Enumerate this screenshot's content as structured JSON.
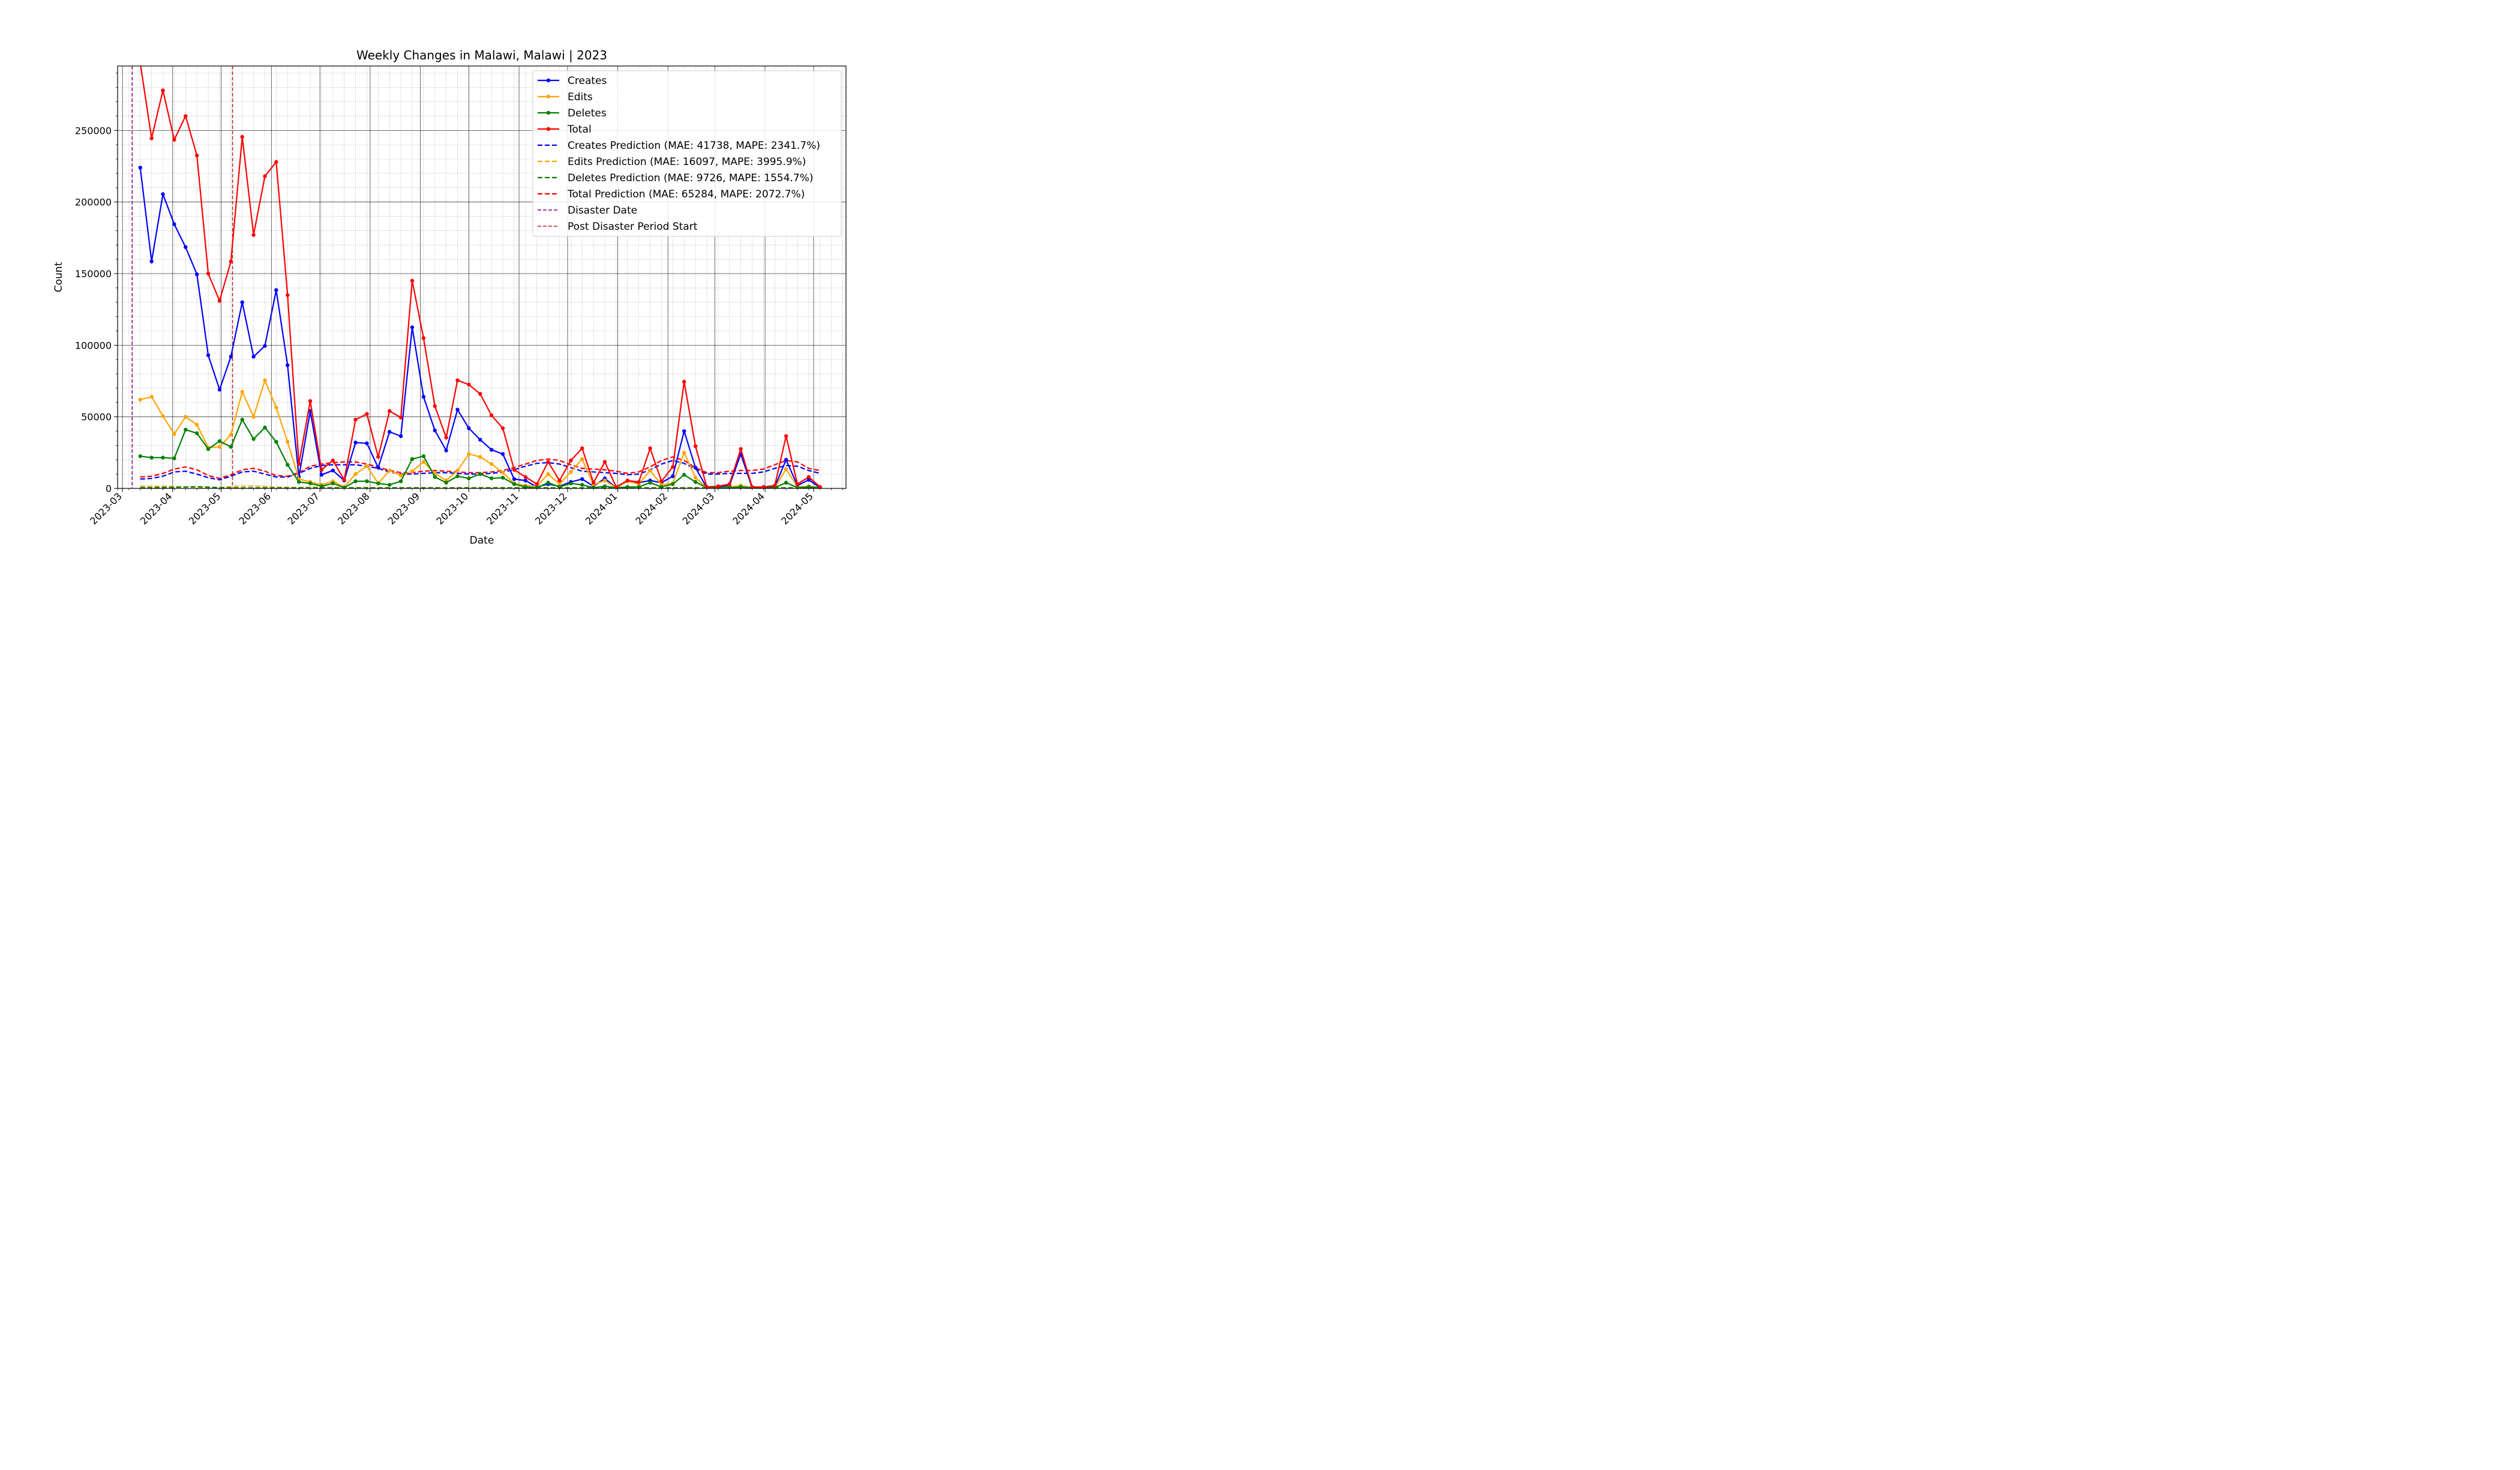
{
  "chart_data": {
    "type": "line",
    "title": "Weekly Changes in Malawi, Malawi | 2023",
    "xlabel": "Date",
    "ylabel": "Count",
    "x_axis": {
      "type": "date",
      "min": "2023-02-26",
      "max": "2024-05-21"
    },
    "ylim": [
      0,
      295000
    ],
    "grid": {
      "major": true,
      "minor": true
    },
    "legend_position": "top-right",
    "x_tick_labels": [
      "2023-03",
      "2023-04",
      "2023-05",
      "2023-06",
      "2023-07",
      "2023-08",
      "2023-09",
      "2023-10",
      "2023-11",
      "2023-12",
      "2024-01",
      "2024-02",
      "2024-03",
      "2024-04",
      "2024-05"
    ],
    "y_tick_labels": [
      "0",
      "50000",
      "100000",
      "150000",
      "200000",
      "250000"
    ],
    "x": [
      "2023-03-12",
      "2023-03-19",
      "2023-03-26",
      "2023-04-02",
      "2023-04-09",
      "2023-04-16",
      "2023-04-23",
      "2023-04-30",
      "2023-05-07",
      "2023-05-14",
      "2023-05-21",
      "2023-05-28",
      "2023-06-04",
      "2023-06-11",
      "2023-06-18",
      "2023-06-25",
      "2023-07-02",
      "2023-07-09",
      "2023-07-16",
      "2023-07-23",
      "2023-07-30",
      "2023-08-06",
      "2023-08-13",
      "2023-08-20",
      "2023-08-27",
      "2023-09-03",
      "2023-09-10",
      "2023-09-17",
      "2023-09-24",
      "2023-10-01",
      "2023-10-08",
      "2023-10-15",
      "2023-10-22",
      "2023-10-29",
      "2023-11-05",
      "2023-11-12",
      "2023-11-19",
      "2023-11-26",
      "2023-12-03",
      "2023-12-10",
      "2023-12-17",
      "2023-12-24",
      "2023-12-31",
      "2024-01-07",
      "2024-01-14",
      "2024-01-21",
      "2024-01-28",
      "2024-02-04",
      "2024-02-11",
      "2024-02-18",
      "2024-02-25",
      "2024-03-03",
      "2024-03-10",
      "2024-03-17",
      "2024-03-24",
      "2024-03-31",
      "2024-04-07",
      "2024-04-14",
      "2024-04-21",
      "2024-04-28",
      "2024-05-05"
    ],
    "series": [
      {
        "name": "Creates",
        "color": "#0000ff",
        "style": "solid-marker",
        "values": [
          224000,
          158500,
          205500,
          184500,
          168500,
          149500,
          93000,
          69000,
          92000,
          130000,
          92000,
          99500,
          138500,
          86000,
          8000,
          54000,
          9500,
          12500,
          5500,
          32000,
          31500,
          14500,
          39500,
          36500,
          112500,
          64000,
          40500,
          26500,
          55000,
          42000,
          34000,
          27000,
          24000,
          6500,
          5500,
          1000,
          3000,
          1500,
          4500,
          6500,
          1500,
          7000,
          500,
          5000,
          4000,
          5500,
          4000,
          8500,
          40000,
          14500,
          500,
          1000,
          2000,
          24000,
          500,
          500,
          1000,
          20000,
          2000,
          6000,
          500
        ]
      },
      {
        "name": "Edits",
        "color": "#ffa500",
        "style": "solid-marker",
        "values": [
          62000,
          64000,
          50500,
          38000,
          50000,
          44500,
          28500,
          29000,
          37500,
          67500,
          50000,
          75500,
          56500,
          32500,
          6500,
          4500,
          2500,
          5000,
          1000,
          10000,
          15500,
          3500,
          12500,
          9000,
          12000,
          18500,
          10500,
          5500,
          12500,
          24000,
          22000,
          17000,
          11000,
          3500,
          2000,
          1500,
          10000,
          3000,
          11500,
          20500,
          2500,
          5500,
          500,
          5000,
          3000,
          12500,
          2500,
          3500,
          25000,
          7500,
          500,
          500,
          1000,
          2000,
          500,
          500,
          500,
          13500,
          1000,
          1500,
          500
        ]
      },
      {
        "name": "Deletes",
        "color": "#008000",
        "style": "solid-marker",
        "values": [
          22500,
          21500,
          21500,
          21000,
          41000,
          38500,
          27500,
          33000,
          29000,
          48000,
          34500,
          42500,
          32500,
          16500,
          4500,
          3500,
          1500,
          3500,
          500,
          5000,
          5000,
          3500,
          2500,
          5000,
          20500,
          22500,
          8000,
          4000,
          8500,
          7000,
          10000,
          7000,
          7500,
          3000,
          1000,
          500,
          4000,
          1000,
          3500,
          2500,
          500,
          1500,
          500,
          1000,
          1000,
          4000,
          1000,
          3000,
          9500,
          4500,
          500,
          500,
          500,
          1000,
          500,
          500,
          500,
          4000,
          500,
          1000,
          500
        ]
      },
      {
        "name": "Total",
        "color": "#ff0000",
        "style": "solid-marker",
        "values": [
          297000,
          244500,
          278000,
          243500,
          260000,
          232500,
          150000,
          131000,
          158500,
          245500,
          177000,
          218000,
          228000,
          135000,
          17000,
          61000,
          13000,
          19500,
          6000,
          48000,
          52000,
          22000,
          54000,
          49500,
          145000,
          105000,
          57500,
          35500,
          75500,
          72500,
          66000,
          51000,
          42000,
          13000,
          8000,
          3000,
          18500,
          5500,
          19500,
          28000,
          4000,
          18500,
          1000,
          5500,
          4500,
          28000,
          5000,
          15000,
          74500,
          29500,
          1000,
          1500,
          3000,
          27500,
          1000,
          1000,
          2000,
          36500,
          3000,
          8000,
          1000
        ]
      },
      {
        "name": "Creates Prediction (MAE: 41738, MAPE: 2341.7%)",
        "color": "#0000ff",
        "style": "dashed",
        "values": [
          6500,
          7000,
          8500,
          11500,
          12000,
          10000,
          7500,
          6000,
          8500,
          11500,
          12000,
          10000,
          8000,
          8000,
          10500,
          14000,
          16000,
          16500,
          16500,
          16500,
          15500,
          14000,
          11500,
          10000,
          10000,
          10500,
          11000,
          11000,
          10500,
          10000,
          10000,
          10500,
          11500,
          13000,
          15500,
          17500,
          18000,
          17000,
          14500,
          12000,
          11500,
          11000,
          10500,
          9500,
          10000,
          13000,
          17000,
          19500,
          17500,
          13500,
          10000,
          10000,
          10500,
          10500,
          10500,
          11500,
          14000,
          16000,
          15500,
          12500,
          10500
        ]
      },
      {
        "name": "Edits Prediction (MAE: 16097, MAPE: 3995.9%)",
        "color": "#ffa500",
        "style": "dashed",
        "values": [
          1500,
          1500,
          1500,
          1300,
          1000,
          800,
          500,
          700,
          1200,
          1600,
          1700,
          1400,
          900,
          700,
          700,
          800,
          800,
          600,
          500,
          500,
          600,
          500,
          500,
          500,
          500,
          500,
          500,
          500,
          500,
          500,
          500,
          500,
          500,
          500,
          500,
          500,
          500,
          500,
          500,
          500,
          500,
          500,
          500,
          500,
          500,
          500,
          500,
          500,
          500,
          500,
          500,
          500,
          500,
          500,
          500,
          500,
          500,
          500,
          500,
          500,
          500
        ]
      },
      {
        "name": "Deletes Prediction (MAE: 9726, MAPE: 1554.7%)",
        "color": "#008000",
        "style": "dashed",
        "values": [
          500,
          500,
          600,
          800,
          1000,
          1200,
          900,
          500,
          300,
          300,
          300,
          300,
          300,
          300,
          300,
          300,
          300,
          300,
          300,
          300,
          300,
          300,
          300,
          300,
          300,
          300,
          300,
          300,
          300,
          300,
          300,
          300,
          300,
          300,
          300,
          300,
          300,
          300,
          300,
          300,
          300,
          300,
          300,
          300,
          300,
          300,
          300,
          300,
          300,
          300,
          300,
          300,
          300,
          300,
          300,
          300,
          300,
          300,
          300,
          300,
          300
        ]
      },
      {
        "name": "Total Prediction (MAE: 65284, MAPE: 2072.7%)",
        "color": "#ff0000",
        "style": "dashed",
        "values": [
          8000,
          8500,
          10500,
          13500,
          15000,
          13000,
          9000,
          7000,
          9500,
          13000,
          14000,
          12000,
          9000,
          8500,
          11000,
          15500,
          17000,
          18000,
          18500,
          18500,
          17000,
          15000,
          12500,
          11000,
          11000,
          12000,
          12500,
          12000,
          11500,
          11000,
          11000,
          11500,
          12500,
          14500,
          17000,
          19500,
          20500,
          19500,
          16500,
          14000,
          13500,
          13000,
          12000,
          10500,
          11500,
          15000,
          19500,
          22000,
          19500,
          14500,
          11000,
          11000,
          12000,
          12500,
          12500,
          13500,
          16500,
          19500,
          18500,
          14000,
          12500
        ]
      }
    ],
    "markers": [
      {
        "name": "Disaster Date",
        "date": "2023-03-07",
        "color": "#800080"
      },
      {
        "name": "Post Disaster Period Start",
        "date": "2023-05-08",
        "color": "#b22222"
      }
    ]
  }
}
